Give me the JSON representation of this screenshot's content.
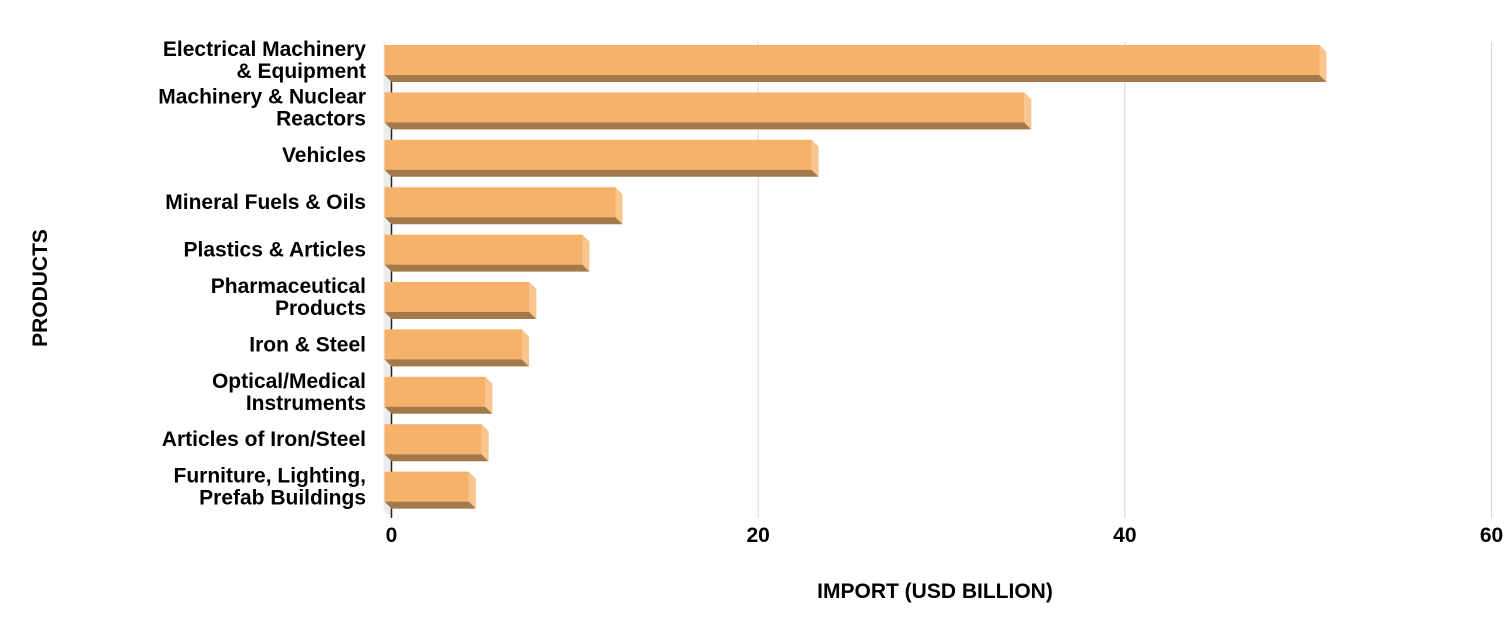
{
  "chart_data": {
    "type": "bar",
    "orientation": "horizontal",
    "style": "3d",
    "title": "",
    "xlabel": "IMPORT (USD BILLION)",
    "ylabel": "PRODUCTS",
    "xlim": [
      0,
      60
    ],
    "xticks": [
      0,
      20,
      40,
      60
    ],
    "grid": true,
    "bar_color": "#F6B26B",
    "categories": [
      [
        "Electrical Machinery",
        "& Equipment"
      ],
      [
        "Machinery & Nuclear",
        "Reactors"
      ],
      [
        "Vehicles"
      ],
      [
        "Mineral Fuels & Oils"
      ],
      [
        "Plastics & Articles"
      ],
      [
        "Pharmaceutical",
        "Products"
      ],
      [
        "Iron & Steel"
      ],
      [
        "Optical/Medical",
        "Instruments"
      ],
      [
        "Articles of Iron/Steel"
      ],
      [
        "Furniture, Lighting,",
        "Prefab Buildings"
      ]
    ],
    "values": [
      51.0,
      34.9,
      23.3,
      12.6,
      10.8,
      7.9,
      7.5,
      5.5,
      5.3,
      4.6
    ]
  }
}
